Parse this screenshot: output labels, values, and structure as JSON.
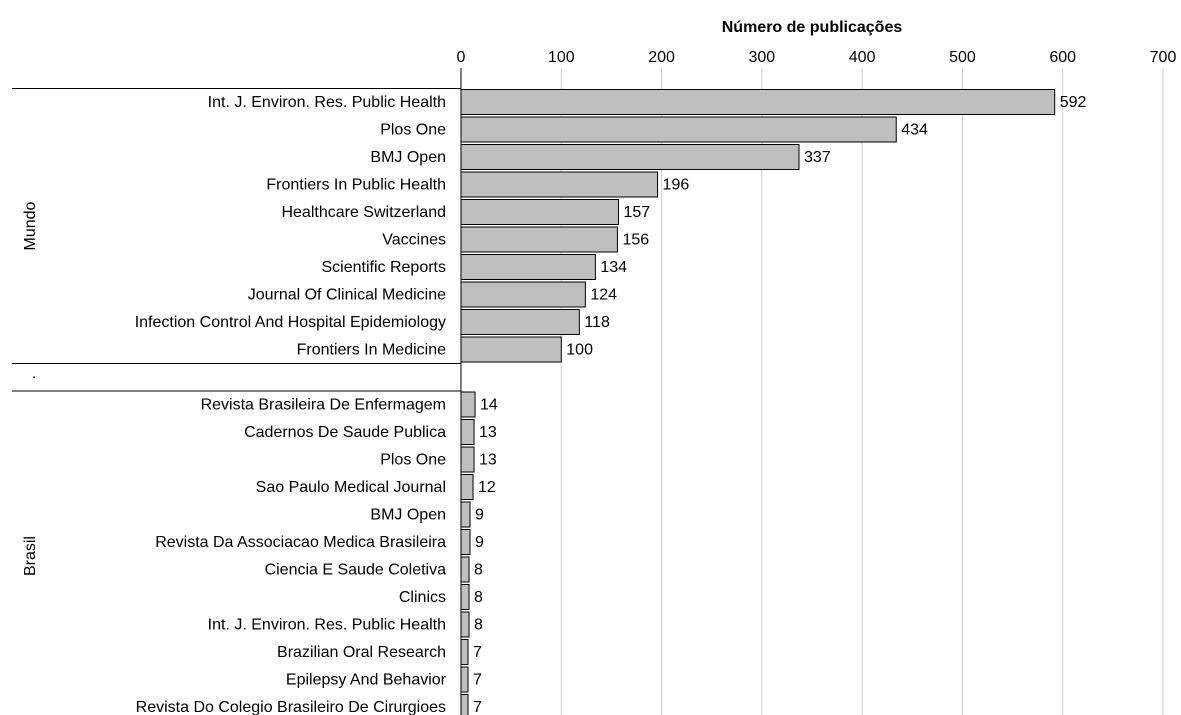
{
  "chart_data": {
    "type": "bar",
    "orientation": "horizontal",
    "x_label": "Número de publicações",
    "xlim": [
      0,
      700
    ],
    "xticks": [
      0,
      100,
      200,
      300,
      400,
      500,
      600,
      700
    ],
    "grid": true,
    "color": "#bfbfbf",
    "groups": [
      {
        "name": "Mundo",
        "categories": [
          "Int. J. Environ. Res. Public Health",
          "Plos One",
          "BMJ Open",
          "Frontiers In Public Health",
          "Healthcare Switzerland",
          "Vaccines",
          "Scientific Reports",
          "Journal Of Clinical Medicine",
          "Infection Control And Hospital Epidemiology",
          "Frontiers In Medicine"
        ],
        "values": [
          592,
          434,
          337,
          196,
          157,
          156,
          134,
          124,
          118,
          100
        ]
      },
      {
        "name": ".",
        "categories": [
          null
        ],
        "values": [
          null
        ]
      },
      {
        "name": "Brasil",
        "categories": [
          "Revista Brasileira De Enfermagem",
          "Cadernos De Saude Publica",
          "Plos One",
          "Sao Paulo Medical Journal",
          "BMJ Open",
          "Revista Da Associacao Medica Brasileira",
          "Ciencia E Saude Coletiva",
          "Clinics",
          "Int. J. Environ. Res. Public Health",
          "Brazilian Oral Research",
          "Epilepsy And Behavior",
          "Revista Do Colegio Brasileiro De Cirurgioes"
        ],
        "values": [
          14,
          13,
          13,
          12,
          9,
          9,
          8,
          8,
          8,
          7,
          7,
          7
        ]
      }
    ]
  }
}
